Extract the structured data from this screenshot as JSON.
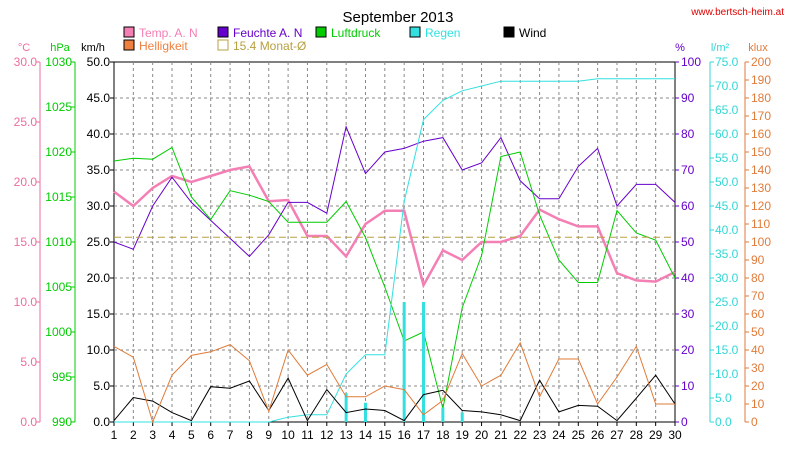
{
  "chart_data": {
    "type": "line",
    "title": "September 2013",
    "source": "www.bertsch-heim.at",
    "x": [
      1,
      2,
      3,
      4,
      5,
      6,
      7,
      8,
      9,
      10,
      11,
      12,
      13,
      14,
      15,
      16,
      17,
      18,
      19,
      20,
      21,
      22,
      23,
      24,
      25,
      26,
      27,
      28,
      29,
      30
    ],
    "axes": [
      {
        "id": "temp",
        "label": "°C",
        "color": "#ee6d9f",
        "ticks": [
          "0.0",
          "5.0",
          "10.0",
          "15.0",
          "20.0",
          "25.0",
          "30.0"
        ],
        "range": [
          0,
          30
        ]
      },
      {
        "id": "press",
        "label": "hPa",
        "color": "#00cc00",
        "ticks": [
          "990",
          "995",
          "1000",
          "1005",
          "1010",
          "1015",
          "1020",
          "1025",
          "1030"
        ],
        "range": [
          990,
          1030
        ]
      },
      {
        "id": "wind",
        "label": "km/h",
        "color": "#000000",
        "ticks": [
          "0.0",
          "5.0",
          "10.0",
          "15.0",
          "20.0",
          "25.0",
          "30.0",
          "35.0",
          "40.0",
          "45.0",
          "50.0"
        ],
        "range": [
          0,
          50
        ]
      },
      {
        "id": "hum",
        "label": "%",
        "color": "#6600cc",
        "ticks": [
          "0",
          "10",
          "20",
          "30",
          "40",
          "50",
          "60",
          "70",
          "80",
          "90",
          "100"
        ],
        "range": [
          0,
          100
        ]
      },
      {
        "id": "rain",
        "label": "l/m²",
        "color": "#33d6d6",
        "ticks": [
          "0.0",
          "5.0",
          "10.0",
          "15.0",
          "20.0",
          "25.0",
          "30.0",
          "35.0",
          "40.0",
          "45.0",
          "50.0",
          "55.0",
          "60.0",
          "65.0",
          "70.0",
          "75.0"
        ],
        "range": [
          0,
          75
        ]
      },
      {
        "id": "lux",
        "label": "klux",
        "color": "#e07b39",
        "ticks": [
          "0",
          "10",
          "20",
          "30",
          "40",
          "50",
          "60",
          "70",
          "80",
          "90",
          "100",
          "110",
          "120",
          "130",
          "140",
          "150",
          "160",
          "170",
          "180",
          "190",
          "200"
        ],
        "range": [
          0,
          200
        ]
      }
    ],
    "legend": [
      {
        "label": "Temp. A. N",
        "color": "#f47fb4"
      },
      {
        "label": "Feuchte A. N",
        "color": "#6600cc"
      },
      {
        "label": "Luftdruck",
        "color": "#00cc00"
      },
      {
        "label": "Regen",
        "color": "#33e0e0"
      },
      {
        "label": "Wind",
        "color": "#000000"
      },
      {
        "label": "Helligkeit",
        "color": "#f08040"
      },
      {
        "label": "15.4 Monat-Ø",
        "color": "#b8a040"
      }
    ],
    "series": [
      {
        "name": "Temp. A. N",
        "axis": "temp",
        "color": "#f47fb4",
        "values": [
          19.2,
          18.0,
          19.5,
          20.5,
          20.0,
          20.5,
          21.0,
          21.3,
          18.4,
          18.5,
          15.5,
          15.5,
          13.8,
          16.5,
          17.6,
          17.6,
          11.4,
          14.3,
          13.5,
          15.0,
          15.0,
          15.5,
          17.7,
          16.9,
          16.3,
          16.3,
          12.4,
          11.8,
          11.7,
          12.5
        ]
      },
      {
        "name": "Feuchte A. N",
        "axis": "hum",
        "color": "#6600cc",
        "values": [
          50,
          48,
          60,
          68,
          61,
          56,
          51,
          46,
          52,
          61,
          61,
          58,
          82,
          69,
          75,
          76,
          78,
          79,
          70,
          72,
          79,
          67,
          62,
          62,
          71,
          76,
          60,
          66,
          66,
          61
        ]
      },
      {
        "name": "Luftdruck",
        "axis": "press",
        "color": "#00cc00",
        "values": [
          1019.0,
          1019.3,
          1019.2,
          1020.5,
          1015.0,
          1012.5,
          1015.7,
          1015.2,
          1014.5,
          1012.2,
          1012.2,
          1012.2,
          1014.5,
          1010.5,
          1005.0,
          999.0,
          1000.0,
          991.5,
          1002.7,
          1008.5,
          1019.5,
          1020.0,
          1013.0,
          1008.0,
          1005.5,
          1005.5,
          1013.5,
          1011.0,
          1010.2,
          1006.0
        ]
      },
      {
        "name": "Regen",
        "axis": "rain",
        "color": "#33e0e0",
        "values": [
          0,
          0,
          0,
          0,
          0,
          0,
          0,
          0,
          0,
          1,
          1.5,
          1.5,
          10,
          14,
          14,
          46,
          63,
          67,
          69,
          70,
          71,
          71,
          71,
          71,
          71,
          71.5,
          71.5,
          71.5,
          71.5,
          71.5
        ]
      },
      {
        "name": "Regen daily",
        "axis": "rain",
        "color": "#33e0e0",
        "type": "bar",
        "values": [
          0,
          0,
          0,
          0,
          0,
          0,
          0,
          0,
          0,
          0,
          0,
          0,
          6,
          4,
          0,
          25,
          25,
          3,
          2,
          0,
          0,
          0,
          0,
          0,
          0,
          0,
          0,
          0,
          0,
          0
        ]
      },
      {
        "name": "Wind",
        "axis": "wind",
        "color": "#000000",
        "values": [
          0.2,
          3.4,
          2.9,
          1.3,
          0.2,
          4.9,
          4.7,
          5.7,
          1.6,
          6.1,
          0.2,
          4.5,
          1.3,
          1.8,
          1.6,
          0.2,
          3.8,
          4.4,
          1.6,
          1.4,
          1.0,
          0.2,
          5.8,
          1.4,
          2.3,
          2.2,
          0.2,
          3.3,
          6.5,
          2.5
        ]
      },
      {
        "name": "Helligkeit",
        "axis": "lux",
        "color": "#e07b39",
        "values": [
          42,
          36,
          0,
          26,
          37,
          39,
          43,
          34,
          6,
          40,
          26,
          32,
          14,
          14,
          20,
          18,
          4,
          12,
          38,
          20,
          26,
          44,
          14,
          35,
          35,
          10,
          25,
          42,
          10,
          10
        ]
      },
      {
        "name": "15.4 Monat-Ø",
        "axis": "temp",
        "color": "#b8a040",
        "values": [
          15.4,
          15.4,
          15.4,
          15.4,
          15.4,
          15.4,
          15.4,
          15.4,
          15.4,
          15.4,
          15.4,
          15.4,
          15.4,
          15.4,
          15.4,
          15.4,
          15.4,
          15.4,
          15.4,
          15.4,
          15.4,
          15.4,
          15.4,
          15.4,
          15.4,
          15.4,
          15.4,
          15.4,
          15.4,
          15.4
        ]
      }
    ]
  }
}
